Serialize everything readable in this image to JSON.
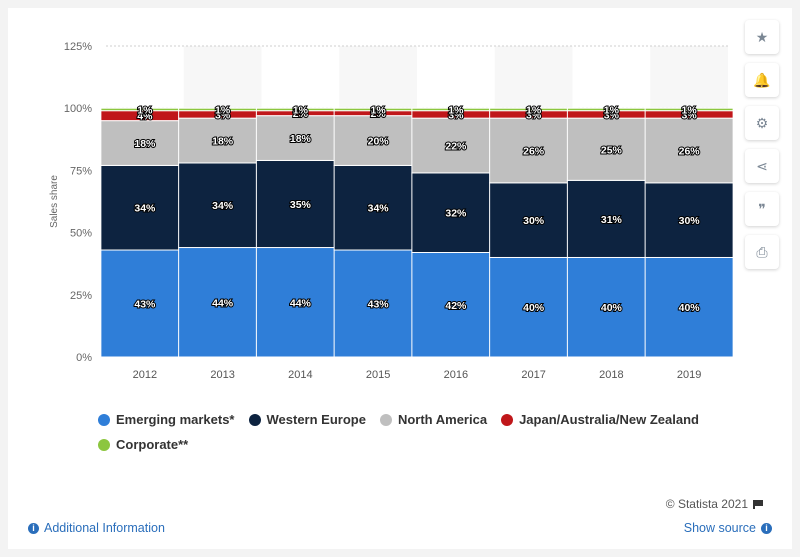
{
  "chart_data": {
    "type": "bar",
    "stacked": true,
    "categories": [
      "2012",
      "2013",
      "2014",
      "2015",
      "2016",
      "2017",
      "2018",
      "2019"
    ],
    "series": [
      {
        "name": "Emerging markets*",
        "color": "#2f7ed8",
        "values": [
          43,
          44,
          44,
          43,
          42,
          40,
          40,
          40
        ],
        "labels": [
          "43%",
          "44%",
          "44%",
          "43%",
          "42%",
          "40%",
          "40%",
          "40%"
        ]
      },
      {
        "name": "Western Europe",
        "color": "#0d2340",
        "values": [
          34,
          34,
          35,
          34,
          32,
          30,
          31,
          30
        ],
        "labels": [
          "34%",
          "34%",
          "35%",
          "34%",
          "32%",
          "30%",
          "31%",
          "30%"
        ]
      },
      {
        "name": "North America",
        "color": "#bfbfbf",
        "values": [
          18,
          18,
          18,
          20,
          22,
          26,
          25,
          26
        ],
        "labels": [
          "18%",
          "18%",
          "18%",
          "20%",
          "22%",
          "26%",
          "25%",
          "26%"
        ]
      },
      {
        "name": "Japan/Australia/New Zealand",
        "color": "#c0171a",
        "values": [
          4,
          3,
          2,
          2,
          3,
          3,
          3,
          3
        ],
        "labels": [
          "4%",
          "3%",
          "2%",
          "2%",
          "3%",
          "3%",
          "3%",
          "3%"
        ]
      },
      {
        "name": "Corporate**",
        "color": "#8cc63f",
        "values": [
          1,
          1,
          1,
          1,
          1,
          1,
          1,
          1
        ],
        "labels": [
          "1%",
          "1%",
          "1%",
          "1%",
          "1%",
          "1%",
          "1%",
          "1%"
        ]
      }
    ],
    "ylabel": "Sales share",
    "ylim": [
      0,
      125
    ],
    "yticks": [
      0,
      25,
      50,
      75,
      100,
      125
    ],
    "ytick_labels": [
      "0%",
      "25%",
      "50%",
      "75%",
      "100%",
      "125%"
    ],
    "grid": true,
    "legend_position": "bottom"
  },
  "sidebar": [
    {
      "icon": "star-icon",
      "glyph": "★"
    },
    {
      "icon": "bell-icon",
      "glyph": "🔔"
    },
    {
      "icon": "gear-icon",
      "glyph": "⚙"
    },
    {
      "icon": "share-icon",
      "glyph": "⋖"
    },
    {
      "icon": "quote-icon",
      "glyph": "❞"
    },
    {
      "icon": "print-icon",
      "glyph": "⎙"
    }
  ],
  "footer": {
    "credit": "© Statista 2021",
    "additional_info": "Additional Information",
    "show_source": "Show source"
  }
}
